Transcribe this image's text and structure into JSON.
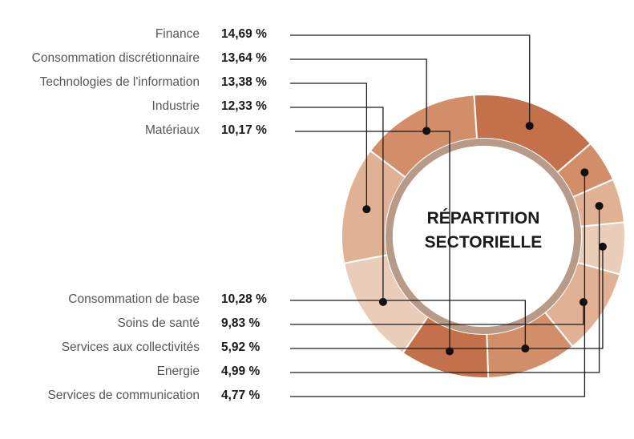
{
  "chart_data": {
    "type": "donut",
    "title": "RÉPARTITION\nSECTORIELLE",
    "title_lines": [
      "RÉPARTITION",
      "SECTORIELLE"
    ],
    "unit": "%",
    "slices": [
      {
        "label": "Finance",
        "value": 14.69,
        "display": "14,69 %",
        "color": "#c4704a"
      },
      {
        "label": "Consommation discrétionnaire",
        "value": 13.64,
        "display": "13,64 %",
        "color": "#d18e68"
      },
      {
        "label": "Technologies de l'information",
        "value": 13.38,
        "display": "13,38 %",
        "color": "#e0b195"
      },
      {
        "label": "Industrie",
        "value": 12.33,
        "display": "12,33 %",
        "color": "#eacdb9"
      },
      {
        "label": "Matériaux",
        "value": 10.17,
        "display": "10,17 %",
        "color": "#c4704a"
      },
      {
        "label": "Consommation de base",
        "value": 10.28,
        "display": "10,28 %",
        "color": "#d18e68"
      },
      {
        "label": "Soins de santé",
        "value": 9.83,
        "display": "9,83 %",
        "color": "#e0b195"
      },
      {
        "label": "Services aux collectivités",
        "value": 5.92,
        "display": "5,92 %",
        "color": "#eacdb9"
      },
      {
        "label": "Energie",
        "value": 4.99,
        "display": "4,99 %",
        "color": "#e0b195"
      },
      {
        "label": "Services de communication",
        "value": 4.77,
        "display": "4,77 %",
        "color": "#d18e68"
      }
    ],
    "legend": "left"
  }
}
